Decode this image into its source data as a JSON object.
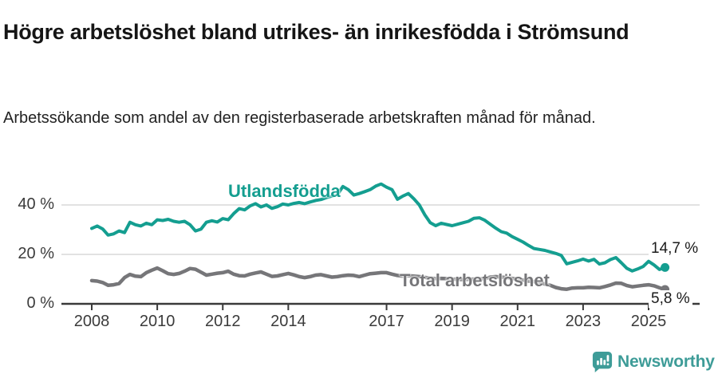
{
  "header": {
    "title": "Högre arbetslöshet bland utrikes- än inrikesfödda i Strömsund",
    "subtitle": "Arbetssökande som andel av den registerbaserade arbetskraften månad för månad."
  },
  "chart_data": {
    "type": "line",
    "title": "Högre arbetslöshet bland utrikes- än inrikesfödda i Strömsund",
    "subtitle": "Arbetssökande som andel av den registerbaserade arbetskraften månad för månad.",
    "xlabel": "",
    "ylabel": "",
    "grid": "horizontal-only",
    "legend_position": "inline-labels",
    "xlim": [
      2007.1,
      2026.5
    ],
    "ylim": [
      0,
      52
    ],
    "x_unit": "year-monthly-samples",
    "x_start": 2008.0,
    "x_step_years": 0.16667,
    "x_ticks": [
      {
        "year": 2008,
        "label": "2008"
      },
      {
        "year": 2010,
        "label": "2010"
      },
      {
        "year": 2012,
        "label": "2012"
      },
      {
        "year": 2014,
        "label": "2014"
      },
      {
        "year": 2017,
        "label": "2017"
      },
      {
        "year": 2019,
        "label": "2019"
      },
      {
        "year": 2021,
        "label": "2021"
      },
      {
        "year": 2023,
        "label": "2023"
      },
      {
        "year": 2025,
        "label": "2025"
      }
    ],
    "y_ticks": [
      {
        "value": 0,
        "label": "0 %"
      },
      {
        "value": 20,
        "label": "20 %"
      },
      {
        "value": 40,
        "label": "40 %"
      }
    ],
    "series": [
      {
        "name": "Utlandsfödda",
        "color": "#149e90",
        "end_label": "14,7 %",
        "end_value": 14.7,
        "stroke_width": 4,
        "values": [
          30.5,
          31.5,
          30.3,
          27.8,
          28.3,
          29.5,
          28.8,
          33.0,
          32.0,
          31.5,
          32.6,
          32.0,
          34.0,
          33.7,
          34.2,
          33.4,
          33.0,
          33.4,
          32.0,
          29.5,
          30.2,
          33.0,
          33.6,
          33.1,
          34.5,
          34.0,
          36.5,
          38.5,
          38.0,
          39.6,
          40.5,
          39.2,
          40.0,
          38.6,
          39.3,
          40.4,
          40.0,
          40.6,
          41.0,
          40.5,
          41.2,
          41.8,
          42.2,
          43.0,
          43.6,
          44.2,
          47.5,
          46.2,
          44.0,
          44.6,
          45.4,
          46.2,
          47.6,
          48.5,
          47.2,
          46.2,
          42.3,
          43.6,
          44.6,
          42.5,
          40.0,
          36.0,
          32.8,
          31.6,
          32.6,
          32.1,
          31.6,
          32.2,
          32.8,
          33.4,
          34.6,
          34.8,
          33.8,
          32.2,
          30.6,
          29.2,
          28.6,
          27.2,
          26.1,
          25.0,
          23.6,
          22.4,
          22.0,
          21.6,
          21.0,
          20.4,
          19.6,
          16.2,
          16.8,
          17.4,
          18.1,
          17.3,
          18.0,
          16.1,
          16.6,
          17.9,
          18.7,
          16.6,
          14.4,
          13.3,
          14.1,
          15.1,
          17.2,
          15.7,
          13.9,
          14.7
        ]
      },
      {
        "name": "Total arbetslöshet",
        "color": "#767679",
        "end_label": "5,8 %",
        "end_value": 5.8,
        "stroke_width": 4.5,
        "values": [
          9.4,
          9.2,
          8.6,
          7.5,
          7.7,
          8.2,
          10.6,
          11.9,
          11.2,
          11.0,
          12.6,
          13.6,
          14.5,
          13.4,
          12.2,
          11.9,
          12.3,
          13.2,
          14.3,
          14.0,
          12.8,
          11.6,
          12.0,
          12.4,
          12.6,
          13.2,
          12.0,
          11.4,
          11.3,
          12.0,
          12.5,
          12.9,
          12.0,
          11.1,
          11.3,
          11.8,
          12.3,
          11.7,
          11.0,
          10.6,
          11.0,
          11.6,
          11.8,
          11.3,
          10.8,
          11.0,
          11.4,
          11.6,
          11.5,
          11.0,
          11.6,
          12.2,
          12.4,
          12.6,
          12.6,
          12.0,
          11.5,
          11.2,
          11.4,
          11.2,
          11.0,
          10.7,
          10.4,
          10.2,
          10.3,
          10.2,
          10.0,
          9.9,
          9.8,
          9.9,
          10.0,
          10.1,
          10.2,
          10.8,
          11.0,
          10.8,
          10.6,
          10.3,
          10.0,
          9.6,
          9.2,
          9.0,
          8.6,
          8.0,
          7.5,
          6.6,
          6.1,
          5.9,
          6.4,
          6.5,
          6.5,
          6.7,
          6.6,
          6.5,
          7.0,
          7.6,
          8.4,
          8.3,
          7.4,
          6.9,
          7.2,
          7.5,
          7.7,
          7.3,
          6.5,
          5.8
        ]
      }
    ],
    "colors": {
      "grid": "#d9d9d9",
      "axis": "#3a3a3a",
      "accent_teal": "#149e90",
      "accent_gray": "#767679"
    }
  },
  "footer": {
    "brand": "Newsworthy",
    "brand_color": "#3e9c98",
    "logo_icon": "bar-chart-speech-bubble"
  }
}
